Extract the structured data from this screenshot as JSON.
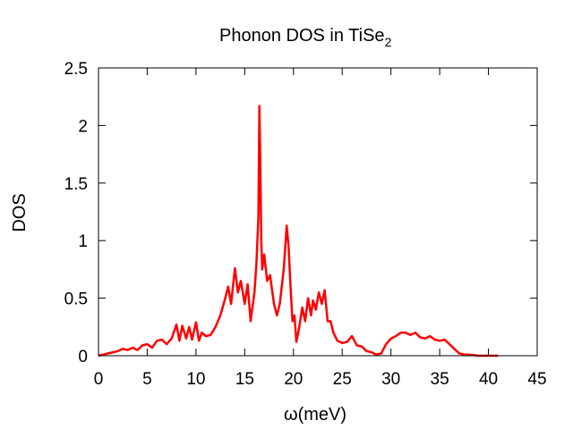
{
  "chart_data": {
    "type": "line",
    "title": "Phonon DOS in TiSe",
    "title_subscript": "2",
    "xlabel": "ω(meV)",
    "ylabel": "DOS",
    "xlim": [
      0,
      45
    ],
    "ylim": [
      0,
      2.5
    ],
    "xticks": [
      "0",
      "5",
      "10",
      "15",
      "20",
      "25",
      "30",
      "35",
      "40",
      "45"
    ],
    "yticks": [
      "0",
      "0.5",
      "1",
      "1.5",
      "2",
      "2.5"
    ],
    "grid": false,
    "line_color": "#ff0000",
    "series": [
      {
        "x": [
          0,
          0.5,
          1,
          1.5,
          2,
          2.5,
          3,
          3.5,
          4,
          4.5,
          5,
          5.5,
          6,
          6.5,
          7,
          7.5,
          8,
          8.3,
          8.6,
          9,
          9.3,
          9.6,
          10,
          10.3,
          10.6,
          11,
          11.5,
          12,
          12.5,
          13,
          13.3,
          13.6,
          14,
          14.3,
          14.6,
          15,
          15.3,
          15.6,
          16,
          16.2,
          16.4,
          16.5,
          16.6,
          16.7,
          16.8,
          17,
          17.3,
          17.6,
          18,
          18.3,
          18.6,
          19,
          19.3,
          19.5,
          19.7,
          19.9,
          20.1,
          20.3,
          20.6,
          20.9,
          21.2,
          21.5,
          21.8,
          22,
          22.3,
          22.6,
          22.9,
          23.2,
          23.5,
          23.8,
          24.1,
          24.5,
          25,
          25.5,
          26,
          26.5,
          27,
          27.5,
          28,
          28.5,
          29,
          29.5,
          30,
          30.5,
          31,
          31.5,
          32,
          32.5,
          33,
          33.5,
          34,
          34.5,
          35,
          35.5,
          36,
          36.5,
          37,
          37.5,
          38,
          39,
          40,
          41
        ],
        "y": [
          0,
          0.01,
          0.02,
          0.03,
          0.04,
          0.06,
          0.05,
          0.07,
          0.05,
          0.09,
          0.1,
          0.07,
          0.13,
          0.14,
          0.1,
          0.15,
          0.27,
          0.13,
          0.26,
          0.15,
          0.25,
          0.14,
          0.29,
          0.13,
          0.2,
          0.17,
          0.18,
          0.25,
          0.35,
          0.5,
          0.6,
          0.45,
          0.76,
          0.55,
          0.65,
          0.45,
          0.62,
          0.3,
          0.55,
          0.8,
          1.2,
          2.17,
          1.65,
          1.0,
          0.75,
          0.88,
          0.65,
          0.7,
          0.45,
          0.35,
          0.45,
          0.75,
          1.13,
          0.95,
          0.6,
          0.3,
          0.35,
          0.12,
          0.25,
          0.42,
          0.3,
          0.5,
          0.35,
          0.48,
          0.4,
          0.55,
          0.45,
          0.57,
          0.3,
          0.3,
          0.2,
          0.13,
          0.11,
          0.12,
          0.17,
          0.09,
          0.08,
          0.04,
          0.03,
          0.01,
          0.02,
          0.1,
          0.15,
          0.17,
          0.2,
          0.2,
          0.18,
          0.2,
          0.16,
          0.15,
          0.17,
          0.14,
          0.13,
          0.14,
          0.1,
          0.06,
          0.02,
          0.01,
          0.01,
          0.0,
          0.0,
          0.0
        ]
      }
    ]
  }
}
